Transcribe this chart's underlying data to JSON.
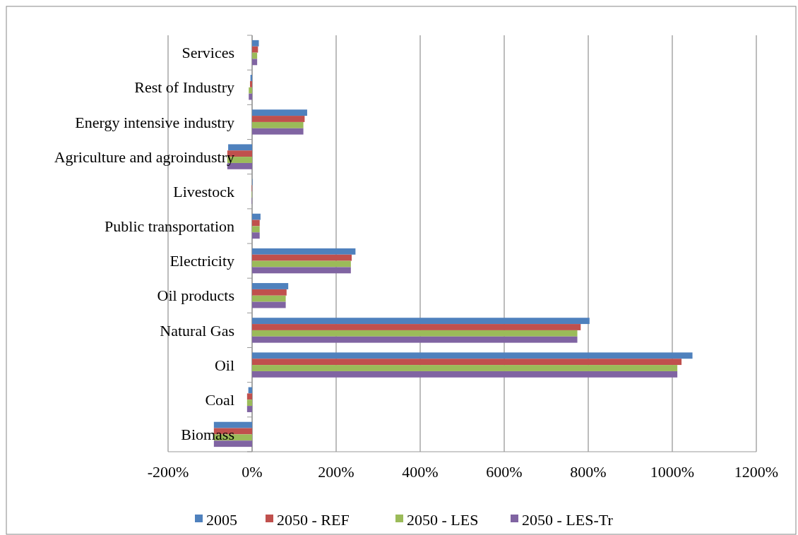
{
  "chart_data": {
    "type": "bar",
    "orientation": "horizontal",
    "categories": [
      "Services",
      "Rest of Industry",
      "Energy intensive industry",
      "Agriculture and agroindustry",
      "Livestock",
      "Public transportation",
      "Electricity",
      "Oil products",
      "Natural Gas",
      "Oil",
      "Coal",
      "Biomass"
    ],
    "series": [
      {
        "name": "2005",
        "color": "#4f81bd",
        "values": [
          16,
          -4,
          131,
          -57,
          0,
          20,
          246,
          86,
          803,
          1048,
          -9,
          -91
        ]
      },
      {
        "name": "2050 - REF",
        "color": "#c0504d",
        "values": [
          14,
          -5,
          125,
          -59,
          -1,
          18,
          237,
          82,
          782,
          1022,
          -12,
          -91
        ]
      },
      {
        "name": "2050 - LES",
        "color": "#9bbb59",
        "values": [
          12,
          -8,
          122,
          -59,
          -1,
          18,
          235,
          80,
          774,
          1012,
          -12,
          -91
        ]
      },
      {
        "name": "2050 - LES-Tr",
        "color": "#8064a2",
        "values": [
          12,
          -8,
          122,
          -59,
          -1,
          18,
          235,
          80,
          774,
          1012,
          -12,
          -91
        ]
      }
    ],
    "xlim": [
      -200,
      1200
    ],
    "xticks": [
      {
        "value": -200,
        "label": "-200%"
      },
      {
        "value": 0,
        "label": "0%"
      },
      {
        "value": 200,
        "label": "200%"
      },
      {
        "value": 400,
        "label": "400%"
      },
      {
        "value": 600,
        "label": "600%"
      },
      {
        "value": 800,
        "label": "800%"
      },
      {
        "value": 1000,
        "label": "1000%"
      },
      {
        "value": 1200,
        "label": "1200%"
      }
    ],
    "grid": "x",
    "legend": "bottom"
  }
}
